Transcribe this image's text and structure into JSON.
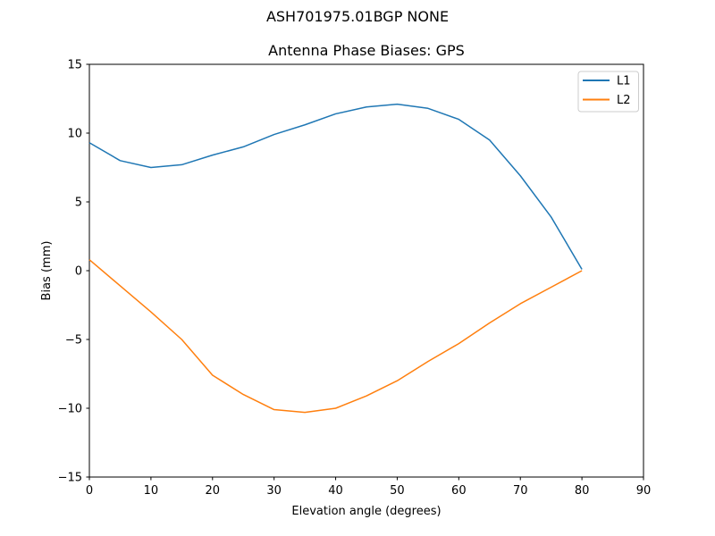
{
  "figure": {
    "suptitle": "ASH701975.01BGP NONE",
    "background": "#ffffff",
    "text_color": "#000000",
    "spine_color": "#000000"
  },
  "chart_data": {
    "type": "line",
    "title": "Antenna Phase Biases: GPS",
    "xlabel": "Elevation angle (degrees)",
    "ylabel": "Bias (mm)",
    "xlim": [
      0,
      90
    ],
    "ylim": [
      -15,
      15
    ],
    "grid": false,
    "xticks": {
      "values": [
        0,
        10,
        20,
        30,
        40,
        50,
        60,
        70,
        80,
        90
      ],
      "labels": [
        "0",
        "10",
        "20",
        "30",
        "40",
        "50",
        "60",
        "70",
        "80",
        "90"
      ]
    },
    "yticks": {
      "values": [
        -15,
        -10,
        -5,
        0,
        5,
        10,
        15
      ],
      "labels": [
        "−15",
        "−10",
        "−5",
        "0",
        "5",
        "10",
        "15"
      ]
    },
    "x": [
      0,
      5,
      10,
      15,
      20,
      25,
      30,
      35,
      40,
      45,
      50,
      55,
      60,
      65,
      70,
      75,
      80
    ],
    "series": [
      {
        "name": "L1",
        "color": "#1f77b4",
        "values": [
          9.3,
          8.0,
          7.5,
          7.7,
          8.4,
          9.0,
          9.9,
          10.6,
          11.4,
          11.9,
          12.1,
          11.8,
          11.0,
          9.5,
          6.9,
          3.9,
          0.1
        ]
      },
      {
        "name": "L2",
        "color": "#ff7f0e",
        "values": [
          0.8,
          -1.1,
          -3.0,
          -5.0,
          -7.6,
          -9.0,
          -10.1,
          -10.3,
          -10.0,
          -9.1,
          -8.0,
          -6.6,
          -5.3,
          -3.8,
          -2.4,
          -1.2,
          0.0
        ]
      }
    ],
    "legend": {
      "position": "upper right",
      "entries": [
        "L1",
        "L2"
      ]
    }
  }
}
